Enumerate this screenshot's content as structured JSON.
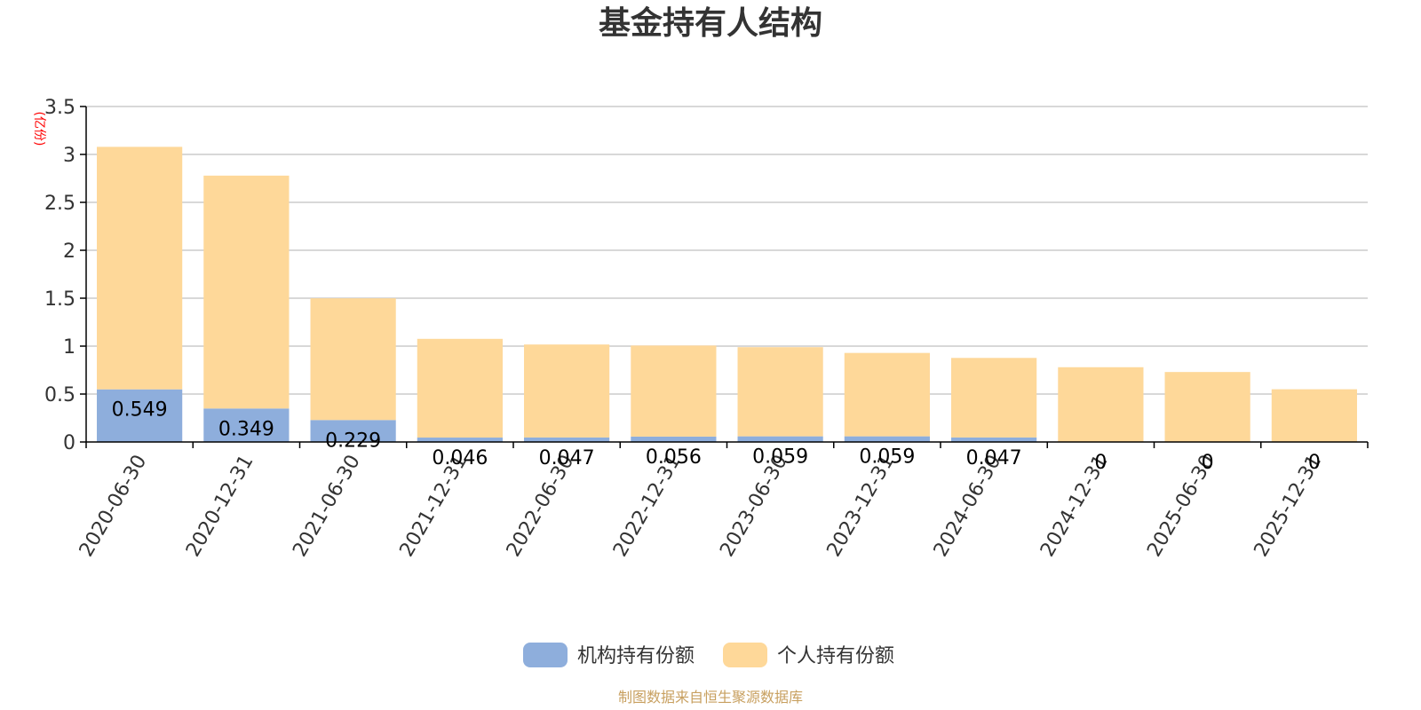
{
  "colors": {
    "institutional": "#8eaedc",
    "individual": "#fed899",
    "grid": "#cccccc",
    "axis": "#000000",
    "unit": "#ff0000",
    "source": "#c8a060"
  },
  "chart_data": {
    "type": "bar",
    "stacked": true,
    "title": "基金持有人结构",
    "unit_label": "(亿份)",
    "ylim": [
      0,
      3.5
    ],
    "yticks": [
      "0",
      "0.5",
      "1",
      "1.5",
      "2",
      "2.5",
      "3",
      "3.5"
    ],
    "grid": true,
    "legend_position": "bottom-center",
    "categories": [
      "2020-06-30",
      "2020-12-31",
      "2021-06-30",
      "2021-12-31",
      "2022-06-30",
      "2022-12-31",
      "2023-06-30",
      "2023-12-31",
      "2024-06-30",
      "2024-12-31",
      "2025-06-30",
      "2025-12-31"
    ],
    "series": [
      {
        "name": "机构持有份额",
        "color_key": "institutional",
        "values": [
          0.549,
          0.349,
          0.229,
          0.046,
          0.047,
          0.056,
          0.059,
          0.059,
          0.047,
          0,
          0,
          0
        ],
        "labels": [
          "0.549",
          "0.349",
          "0.229",
          "0.046",
          "0.047",
          "0.056",
          "0.059",
          "0.059",
          "0.047",
          "0",
          "0",
          "0"
        ]
      },
      {
        "name": "个人持有份额",
        "color_key": "individual",
        "values": [
          2.53,
          2.43,
          1.27,
          1.03,
          0.97,
          0.95,
          0.93,
          0.87,
          0.83,
          0.78,
          0.73,
          0.55
        ]
      }
    ],
    "source": "制图数据来自恒生聚源数据库"
  }
}
